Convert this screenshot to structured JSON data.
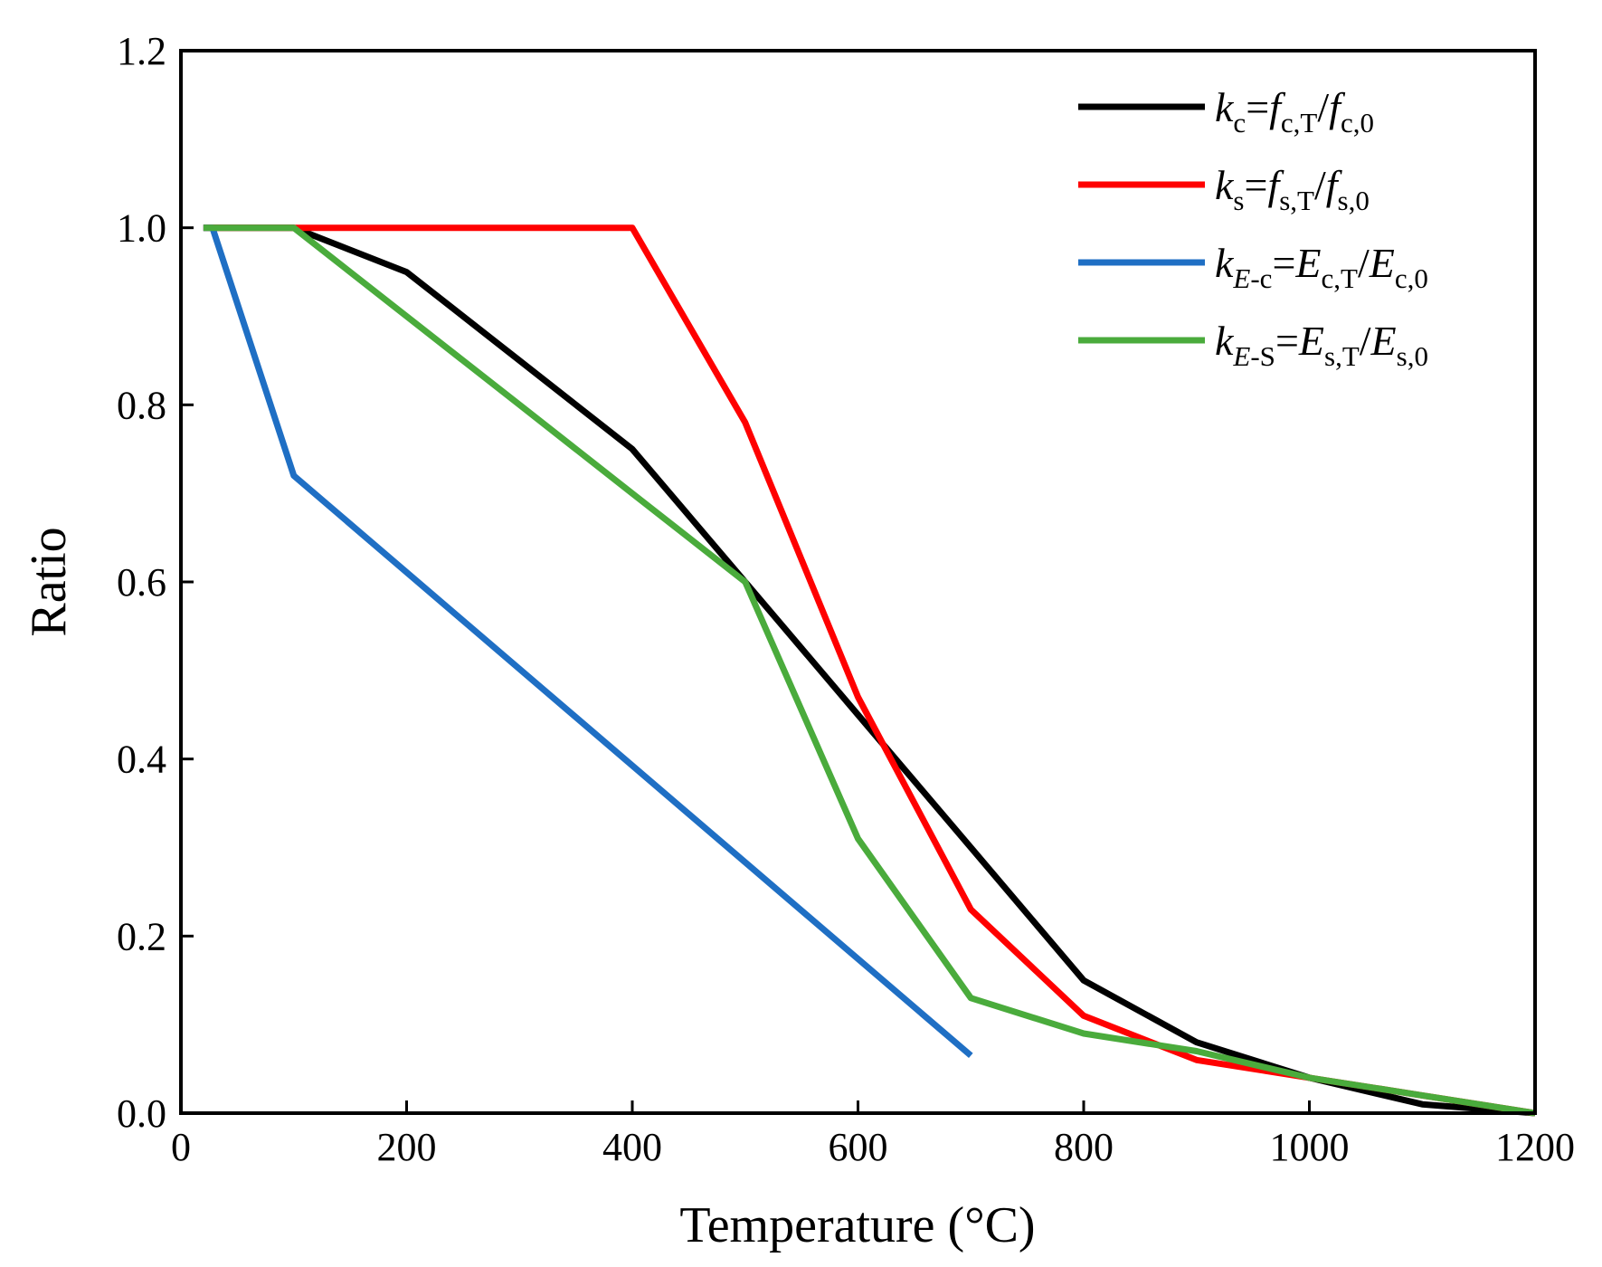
{
  "chart_data": {
    "type": "line",
    "title": "",
    "xlabel": "Temperature (°C)",
    "ylabel": "Ratio",
    "xlim": [
      0,
      1200
    ],
    "ylim": [
      0,
      1.2
    ],
    "xticks": [
      "0",
      "200",
      "400",
      "600",
      "800",
      "1000",
      "1200"
    ],
    "yticks": [
      "0.0",
      "0.2",
      "0.4",
      "0.6",
      "0.8",
      "1.0",
      "1.2"
    ],
    "grid": false,
    "legend_position": "top-right",
    "series": [
      {
        "name": "k_c = f_c,T / f_c,0",
        "color": "#000000",
        "legend": [
          {
            "t": "k",
            "s": "n",
            "i": true
          },
          {
            "t": "c",
            "s": "sub"
          },
          {
            "t": "=",
            "s": "n"
          },
          {
            "t": "f",
            "s": "n",
            "i": true
          },
          {
            "t": "c,T",
            "s": "sub"
          },
          {
            "t": "/",
            "s": "n"
          },
          {
            "t": "f",
            "s": "n",
            "i": true
          },
          {
            "t": "c,0",
            "s": "sub"
          }
        ],
        "x": [
          20,
          100,
          200,
          300,
          400,
          500,
          600,
          700,
          800,
          900,
          1000,
          1100,
          1200
        ],
        "y": [
          1.0,
          1.0,
          0.95,
          0.85,
          0.75,
          0.6,
          0.45,
          0.3,
          0.15,
          0.08,
          0.04,
          0.01,
          0.0
        ]
      },
      {
        "name": "k_s = f_s,T / f_s,0",
        "color": "#ff0000",
        "legend": [
          {
            "t": "k",
            "s": "n",
            "i": true
          },
          {
            "t": "s",
            "s": "sub"
          },
          {
            "t": "=",
            "s": "n"
          },
          {
            "t": "f",
            "s": "n",
            "i": true
          },
          {
            "t": "s,T",
            "s": "sub"
          },
          {
            "t": "/",
            "s": "n"
          },
          {
            "t": "f",
            "s": "n",
            "i": true
          },
          {
            "t": "s,0",
            "s": "sub"
          }
        ],
        "x": [
          20,
          100,
          200,
          300,
          400,
          500,
          600,
          700,
          800,
          900,
          1000,
          1100,
          1200
        ],
        "y": [
          1.0,
          1.0,
          1.0,
          1.0,
          1.0,
          0.78,
          0.47,
          0.23,
          0.11,
          0.06,
          0.04,
          0.02,
          0.0
        ]
      },
      {
        "name": "k_E-c = E_c,T / E_c,0",
        "color": "#1f6fc4",
        "legend": [
          {
            "t": "k",
            "s": "n",
            "i": true
          },
          {
            "t": "E",
            "s": "sub",
            "i": true
          },
          {
            "t": "-c",
            "s": "sub"
          },
          {
            "t": "=",
            "s": "n"
          },
          {
            "t": "E",
            "s": "n",
            "i": true
          },
          {
            "t": "c,T",
            "s": "sub"
          },
          {
            "t": "/",
            "s": "n"
          },
          {
            "t": "E",
            "s": "n",
            "i": true
          },
          {
            "t": "c,0",
            "s": "sub"
          }
        ],
        "x": [
          20,
          28,
          100,
          700
        ],
        "y": [
          1.0,
          1.0,
          0.72,
          0.065
        ]
      },
      {
        "name": "k_E-S = E_s,T / E_s,0",
        "color": "#4aab3c",
        "legend": [
          {
            "t": "k",
            "s": "n",
            "i": true
          },
          {
            "t": "E",
            "s": "sub",
            "i": true
          },
          {
            "t": "-S",
            "s": "sub"
          },
          {
            "t": "=",
            "s": "n"
          },
          {
            "t": "E",
            "s": "n",
            "i": true
          },
          {
            "t": "s,T",
            "s": "sub"
          },
          {
            "t": "/",
            "s": "n"
          },
          {
            "t": "E",
            "s": "n",
            "i": true
          },
          {
            "t": "s,0",
            "s": "sub"
          }
        ],
        "x": [
          20,
          100,
          200,
          300,
          400,
          500,
          600,
          700,
          800,
          900,
          1000,
          1100,
          1200
        ],
        "y": [
          1.0,
          1.0,
          0.9,
          0.8,
          0.7,
          0.6,
          0.31,
          0.13,
          0.09,
          0.07,
          0.04,
          0.02,
          0.0
        ]
      }
    ]
  }
}
